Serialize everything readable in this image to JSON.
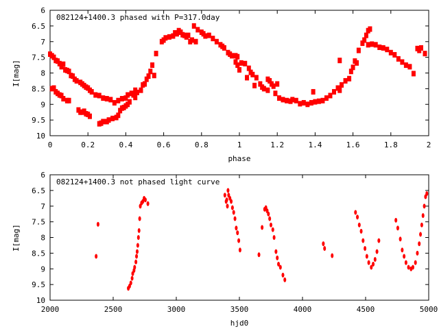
{
  "chart_data": [
    {
      "type": "scatter",
      "title": "082124+1400.3 phased with P=317.0day",
      "xlabel": "phase",
      "ylabel": "I[mag]",
      "xlim": [
        0,
        2
      ],
      "ylim": [
        10,
        6
      ],
      "y_inverted": true,
      "grid": false,
      "xticks": [
        "0",
        "0.2",
        "0.4",
        "0.6",
        "0.8",
        "1",
        "1.2",
        "1.4",
        "1.6",
        "1.8",
        "2"
      ],
      "xtick_values": [
        0,
        0.2,
        0.4,
        0.6,
        0.8,
        1,
        1.2,
        1.4,
        1.6,
        1.8,
        2
      ],
      "yticks": [
        "6",
        "6.5",
        "7",
        "7.5",
        "8",
        "8.5",
        "9",
        "9.5",
        "10"
      ],
      "ytick_values": [
        6,
        6.5,
        7,
        7.5,
        8,
        8.5,
        9,
        9.5,
        10
      ],
      "color": "#ff0000",
      "points": [
        [
          0,
          7.4
        ],
        [
          0.01,
          7.45
        ],
        [
          0.02,
          7.5
        ],
        [
          0.03,
          7.6
        ],
        [
          0.04,
          7.62
        ],
        [
          0.05,
          7.7
        ],
        [
          0.06,
          7.8
        ],
        [
          0.07,
          7.72
        ],
        [
          0.08,
          7.9
        ],
        [
          0.09,
          7.92
        ],
        [
          0.1,
          7.95
        ],
        [
          0.11,
          8.08
        ],
        [
          0.12,
          8.1
        ],
        [
          0.13,
          8.2
        ],
        [
          0.14,
          8.25
        ],
        [
          0.16,
          8.3
        ],
        [
          0.17,
          8.35
        ],
        [
          0.18,
          8.4
        ],
        [
          0.19,
          8.45
        ],
        [
          0.2,
          8.48
        ],
        [
          0.21,
          8.55
        ],
        [
          0.22,
          8.6
        ],
        [
          0.24,
          8.7
        ],
        [
          0.26,
          8.72
        ],
        [
          0.28,
          8.8
        ],
        [
          0.3,
          8.82
        ],
        [
          0.32,
          8.85
        ],
        [
          0.34,
          8.95
        ],
        [
          0.36,
          8.88
        ],
        [
          0.38,
          8.82
        ],
        [
          0.4,
          8.8
        ],
        [
          0.41,
          8.7
        ],
        [
          0.43,
          8.65
        ],
        [
          0.45,
          8.55
        ],
        [
          0.01,
          8.5
        ],
        [
          0.02,
          8.48
        ],
        [
          0.03,
          8.6
        ],
        [
          0.04,
          8.65
        ],
        [
          0.05,
          8.7
        ],
        [
          0.06,
          8.72
        ],
        [
          0.07,
          8.82
        ],
        [
          0.09,
          8.88
        ],
        [
          0.1,
          8.88
        ],
        [
          0.15,
          9.18
        ],
        [
          0.16,
          9.25
        ],
        [
          0.17,
          9.25
        ],
        [
          0.18,
          9.22
        ],
        [
          0.19,
          9.3
        ],
        [
          0.2,
          9.32
        ],
        [
          0.21,
          9.38
        ],
        [
          0.26,
          9.62
        ],
        [
          0.27,
          9.6
        ],
        [
          0.28,
          9.55
        ],
        [
          0.3,
          9.55
        ],
        [
          0.31,
          9.5
        ],
        [
          0.33,
          9.45
        ],
        [
          0.35,
          9.42
        ],
        [
          0.36,
          9.35
        ],
        [
          0.37,
          9.2
        ],
        [
          0.38,
          9.12
        ],
        [
          0.39,
          9.1
        ],
        [
          0.4,
          9.05
        ],
        [
          0.41,
          9.0
        ],
        [
          0.42,
          8.92
        ],
        [
          0.44,
          8.7
        ],
        [
          0.45,
          8.78
        ],
        [
          0.46,
          8.62
        ],
        [
          0.48,
          8.55
        ],
        [
          0.49,
          8.38
        ],
        [
          0.5,
          8.35
        ],
        [
          0.51,
          8.2
        ],
        [
          0.52,
          8.1
        ],
        [
          0.53,
          7.95
        ],
        [
          0.54,
          7.75
        ],
        [
          0.55,
          8.08
        ],
        [
          0.56,
          7.38
        ],
        [
          0.59,
          7.0
        ],
        [
          0.6,
          6.95
        ],
        [
          0.61,
          6.88
        ],
        [
          0.63,
          6.85
        ],
        [
          0.65,
          6.82
        ],
        [
          0.66,
          6.72
        ],
        [
          0.67,
          6.75
        ],
        [
          0.68,
          6.65
        ],
        [
          0.69,
          6.7
        ],
        [
          0.7,
          6.78
        ],
        [
          0.71,
          6.8
        ],
        [
          0.72,
          6.85
        ],
        [
          0.73,
          6.8
        ],
        [
          0.74,
          7.0
        ],
        [
          0.75,
          6.95
        ],
        [
          0.76,
          6.5
        ],
        [
          0.77,
          7.0
        ],
        [
          0.78,
          6.62
        ],
        [
          0.8,
          6.7
        ],
        [
          0.81,
          6.75
        ],
        [
          0.82,
          6.82
        ],
        [
          0.84,
          6.8
        ],
        [
          0.86,
          6.9
        ],
        [
          0.88,
          7.0
        ],
        [
          0.9,
          7.1
        ],
        [
          0.91,
          7.15
        ],
        [
          0.92,
          7.2
        ],
        [
          0.94,
          7.35
        ],
        [
          0.95,
          7.4
        ],
        [
          0.96,
          7.45
        ],
        [
          0.98,
          7.45
        ],
        [
          0.99,
          7.48
        ],
        [
          0.98,
          7.65
        ],
        [
          0.99,
          7.75
        ],
        [
          1.0,
          7.9
        ],
        [
          1.01,
          7.68
        ],
        [
          1.03,
          7.7
        ],
        [
          1.04,
          8.15
        ],
        [
          1.05,
          7.85
        ],
        [
          1.06,
          7.98
        ],
        [
          1.07,
          8.05
        ],
        [
          1.08,
          8.4
        ],
        [
          1.09,
          8.15
        ],
        [
          1.11,
          8.35
        ],
        [
          1.12,
          8.45
        ],
        [
          1.13,
          8.5
        ],
        [
          1.15,
          8.55
        ],
        [
          1.15,
          8.2
        ],
        [
          1.16,
          8.25
        ],
        [
          1.17,
          8.35
        ],
        [
          1.18,
          8.42
        ],
        [
          1.19,
          8.65
        ],
        [
          1.2,
          8.35
        ],
        [
          1.21,
          8.8
        ],
        [
          1.23,
          8.85
        ],
        [
          1.25,
          8.88
        ],
        [
          1.27,
          8.9
        ],
        [
          1.28,
          8.85
        ],
        [
          1.3,
          8.88
        ],
        [
          1.32,
          8.98
        ],
        [
          1.34,
          8.95
        ],
        [
          1.36,
          9.0
        ],
        [
          1.38,
          8.95
        ],
        [
          1.39,
          8.6
        ],
        [
          1.4,
          8.92
        ],
        [
          1.42,
          8.9
        ],
        [
          1.44,
          8.88
        ],
        [
          1.46,
          8.8
        ],
        [
          1.48,
          8.72
        ],
        [
          1.5,
          8.6
        ],
        [
          1.52,
          8.48
        ],
        [
          1.53,
          7.6
        ],
        [
          1.53,
          8.55
        ],
        [
          1.54,
          8.38
        ],
        [
          1.56,
          8.25
        ],
        [
          1.58,
          8.18
        ],
        [
          1.59,
          7.95
        ],
        [
          1.6,
          7.82
        ],
        [
          1.61,
          7.62
        ],
        [
          1.62,
          7.68
        ],
        [
          1.63,
          7.28
        ],
        [
          1.65,
          7.05
        ],
        [
          1.66,
          6.95
        ],
        [
          1.67,
          6.8
        ],
        [
          1.68,
          6.65
        ],
        [
          1.69,
          6.6
        ],
        [
          1.68,
          7.1
        ],
        [
          1.7,
          7.08
        ],
        [
          1.72,
          7.1
        ],
        [
          1.74,
          7.18
        ],
        [
          1.76,
          7.2
        ],
        [
          1.78,
          7.25
        ],
        [
          1.8,
          7.35
        ],
        [
          1.82,
          7.42
        ],
        [
          1.84,
          7.55
        ],
        [
          1.86,
          7.65
        ],
        [
          1.88,
          7.75
        ],
        [
          1.9,
          7.8
        ],
        [
          1.92,
          8.02
        ],
        [
          1.94,
          7.22
        ],
        [
          1.95,
          7.28
        ],
        [
          1.96,
          7.2
        ],
        [
          1.98,
          7.38
        ]
      ]
    },
    {
      "type": "scatter",
      "title": "082124+1400.3 not phased light curve",
      "xlabel": "hjd0",
      "ylabel": "I[mag]",
      "xlim": [
        2000,
        5000
      ],
      "ylim": [
        10,
        6
      ],
      "y_inverted": true,
      "grid": false,
      "xticks": [
        "2000",
        "2500",
        "3000",
        "3500",
        "4000",
        "4500",
        "5000"
      ],
      "xtick_values": [
        2000,
        2500,
        3000,
        3500,
        4000,
        4500,
        5000
      ],
      "yticks": [
        "6",
        "6.5",
        "7",
        "7.5",
        "8",
        "8.5",
        "9",
        "9.5",
        "10"
      ],
      "ytick_values": [
        6,
        6.5,
        7,
        7.5,
        8,
        8.5,
        9,
        9.5,
        10
      ],
      "color": "#ff0000",
      "points": [
        [
          2365,
          8.6
        ],
        [
          2380,
          7.58
        ],
        [
          2620,
          9.62
        ],
        [
          2630,
          9.55
        ],
        [
          2640,
          9.45
        ],
        [
          2650,
          9.3
        ],
        [
          2655,
          9.15
        ],
        [
          2665,
          9.05
        ],
        [
          2670,
          8.95
        ],
        [
          2680,
          8.78
        ],
        [
          2685,
          8.6
        ],
        [
          2690,
          8.45
        ],
        [
          2695,
          8.25
        ],
        [
          2700,
          8.0
        ],
        [
          2705,
          7.78
        ],
        [
          2710,
          7.4
        ],
        [
          2715,
          7.0
        ],
        [
          2725,
          6.9
        ],
        [
          2735,
          6.85
        ],
        [
          2745,
          6.75
        ],
        [
          2755,
          6.8
        ],
        [
          2775,
          6.92
        ],
        [
          3385,
          6.65
        ],
        [
          3395,
          6.85
        ],
        [
          3400,
          6.8
        ],
        [
          3405,
          7.0
        ],
        [
          3410,
          6.5
        ],
        [
          3415,
          6.65
        ],
        [
          3425,
          6.75
        ],
        [
          3435,
          6.85
        ],
        [
          3445,
          7.05
        ],
        [
          3455,
          7.2
        ],
        [
          3465,
          7.4
        ],
        [
          3475,
          7.7
        ],
        [
          3485,
          7.85
        ],
        [
          3495,
          8.1
        ],
        [
          3505,
          8.4
        ],
        [
          3655,
          8.55
        ],
        [
          3680,
          7.68
        ],
        [
          3700,
          7.1
        ],
        [
          3710,
          7.05
        ],
        [
          3720,
          7.15
        ],
        [
          3730,
          7.25
        ],
        [
          3740,
          7.4
        ],
        [
          3750,
          7.6
        ],
        [
          3765,
          7.75
        ],
        [
          3775,
          8.0
        ],
        [
          3790,
          8.45
        ],
        [
          3800,
          8.65
        ],
        [
          3810,
          8.85
        ],
        [
          3825,
          8.95
        ],
        [
          3845,
          9.2
        ],
        [
          3860,
          9.35
        ],
        [
          4165,
          8.2
        ],
        [
          4175,
          8.35
        ],
        [
          4235,
          8.58
        ],
        [
          4420,
          7.2
        ],
        [
          4435,
          7.35
        ],
        [
          4450,
          7.6
        ],
        [
          4465,
          7.8
        ],
        [
          4480,
          8.1
        ],
        [
          4495,
          8.35
        ],
        [
          4510,
          8.6
        ],
        [
          4525,
          8.8
        ],
        [
          4545,
          8.95
        ],
        [
          4560,
          8.85
        ],
        [
          4575,
          8.7
        ],
        [
          4590,
          8.45
        ],
        [
          4605,
          8.1
        ],
        [
          4740,
          7.45
        ],
        [
          4755,
          7.7
        ],
        [
          4775,
          8.05
        ],
        [
          4790,
          8.4
        ],
        [
          4805,
          8.6
        ],
        [
          4820,
          8.8
        ],
        [
          4840,
          8.95
        ],
        [
          4860,
          9.0
        ],
        [
          4875,
          8.95
        ],
        [
          4895,
          8.8
        ],
        [
          4910,
          8.5
        ],
        [
          4925,
          8.2
        ],
        [
          4935,
          7.9
        ],
        [
          4945,
          7.6
        ],
        [
          4955,
          7.3
        ],
        [
          4965,
          7.0
        ],
        [
          4975,
          6.7
        ],
        [
          4985,
          6.6
        ]
      ]
    }
  ]
}
